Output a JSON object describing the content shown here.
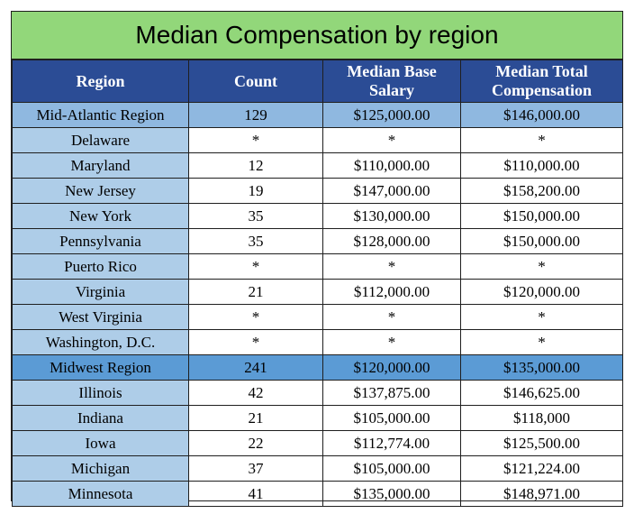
{
  "title": "Median Compensation by region",
  "headers": {
    "region": "Region",
    "count": "Count",
    "base_line1": "Median Base",
    "base_line2": "Salary",
    "total_line1": "Median Total",
    "total_line2": "Compensation"
  },
  "rows": [
    {
      "name": "Mid-Atlantic Region",
      "count": "129",
      "base": "$125,000.00",
      "total": "$146,000.00",
      "kind": "region-light"
    },
    {
      "name": "Delaware",
      "count": "*",
      "base": "*",
      "total": "*"
    },
    {
      "name": "Maryland",
      "count": "12",
      "base": "$110,000.00",
      "total": "$110,000.00"
    },
    {
      "name": "New Jersey",
      "count": "19",
      "base": "$147,000.00",
      "total": "$158,200.00"
    },
    {
      "name": "New York",
      "count": "35",
      "base": "$130,000.00",
      "total": "$150,000.00"
    },
    {
      "name": "Pennsylvania",
      "count": "35",
      "base": "$128,000.00",
      "total": "$150,000.00"
    },
    {
      "name": "Puerto Rico",
      "count": "*",
      "base": "*",
      "total": "*"
    },
    {
      "name": "Virginia",
      "count": "21",
      "base": "$112,000.00",
      "total": "$120,000.00"
    },
    {
      "name": "West Virginia",
      "count": "*",
      "base": "*",
      "total": "*"
    },
    {
      "name": "Washington, D.C.",
      "count": "*",
      "base": "*",
      "total": "*"
    },
    {
      "name": "Midwest Region",
      "count": "241",
      "base": "$120,000.00",
      "total": "$135,000.00",
      "kind": "region"
    },
    {
      "name": "Illinois",
      "count": "42",
      "base": "$137,875.00",
      "total": "$146,625.00"
    },
    {
      "name": "Indiana",
      "count": "21",
      "base": "$105,000.00",
      "total": "$118,000"
    },
    {
      "name": "Iowa",
      "count": "22",
      "base": "$112,774.00",
      "total": "$125,500.00"
    },
    {
      "name": "Michigan",
      "count": "37",
      "base": "$105,000.00",
      "total": "$121,224.00"
    },
    {
      "name": "Minnesota",
      "count": "41",
      "base": "$135,000.00",
      "total": "$148,971.00"
    }
  ],
  "colors": {
    "title_bg": "#92d77a",
    "header_bg": "#2b4c95",
    "region_bg": "#5b9bd5",
    "region_light_bg": "#8fb8e0",
    "state_name_bg": "#aecde8"
  }
}
